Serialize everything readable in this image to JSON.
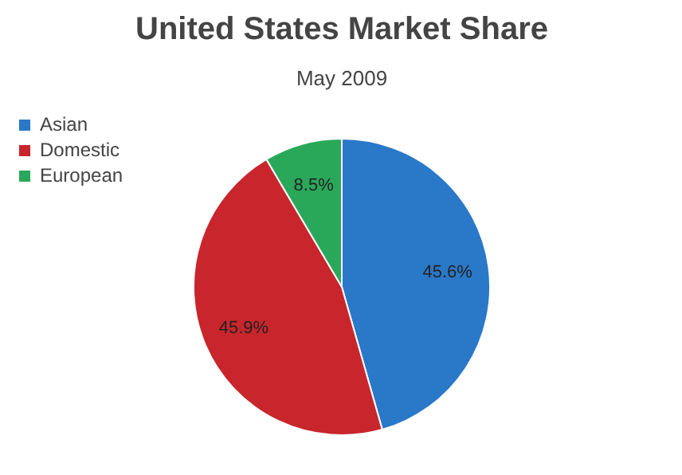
{
  "chart_data": {
    "type": "pie",
    "title": "United States Market Share",
    "subtitle": "May 2009",
    "categories": [
      "Asian",
      "Domestic",
      "European"
    ],
    "values": [
      45.6,
      45.9,
      8.5
    ],
    "colors": [
      "#2a78c8",
      "#c8262c",
      "#2aa85a"
    ],
    "value_labels": [
      "45.6%",
      "45.9%",
      "8.5%"
    ],
    "legend": "top left"
  }
}
